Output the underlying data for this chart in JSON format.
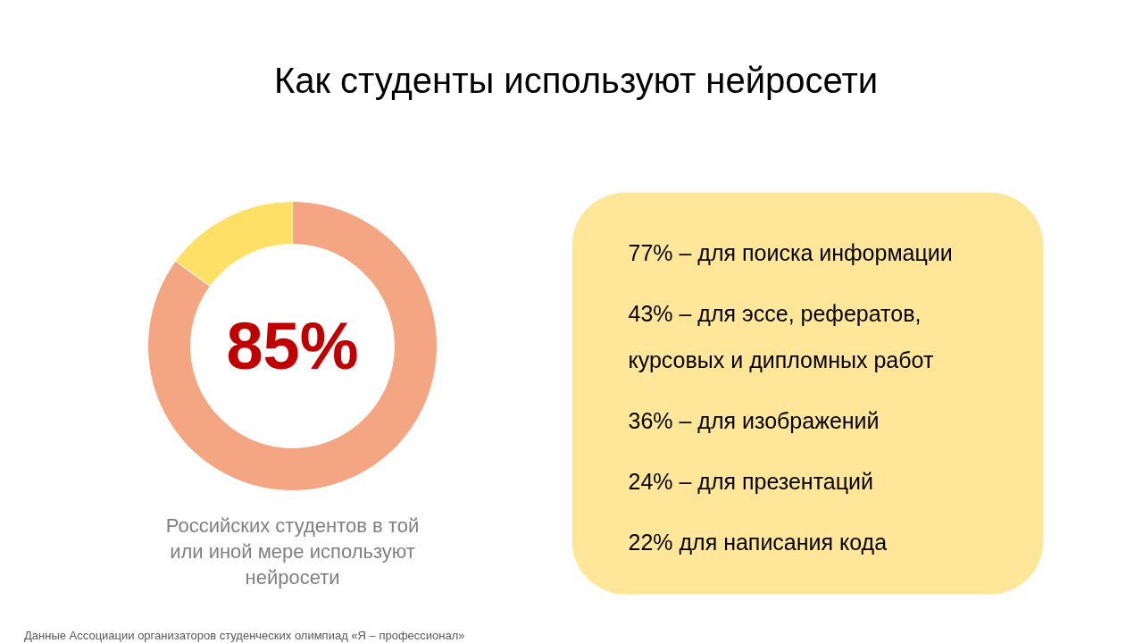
{
  "chart_data": [
    {
      "type": "donut",
      "title": "Как студенты используют нейросети",
      "categories": [
        null,
        null
      ],
      "values": [
        85,
        15
      ],
      "colors": [
        "#f4a582",
        "#ffe066"
      ],
      "value_labels": [
        "85%",
        null
      ],
      "annotations": [
        "Российских студентов в той или иной мере используют нейросети",
        "Данные Ассоциации организаторов студенческих олимпиад «Я – профессионал»"
      ]
    },
    {
      "type": "other",
      "annotations": [
        "77% – для поиска информации",
        "43% – для эссе, рефератов, курсовых и дипломных работ",
        "36% – для изображений",
        "24% – для презентаций",
        "22% для написания кода"
      ]
    }
  ]
}
